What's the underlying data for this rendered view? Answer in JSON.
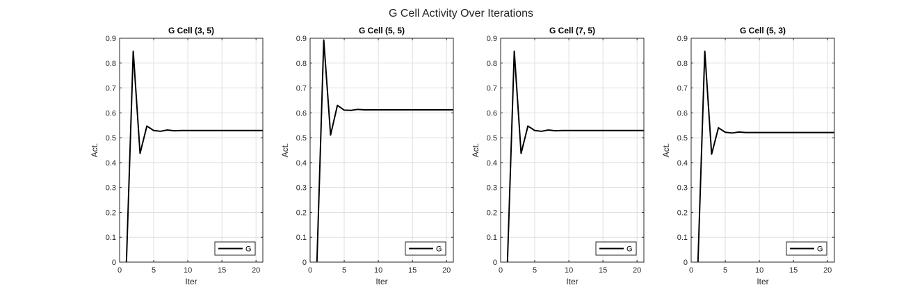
{
  "figure": {
    "title": "G Cell Activity Over Iterations"
  },
  "chart_data": [
    {
      "type": "line",
      "title": "G Cell (3, 5)",
      "xlabel": "Iter",
      "ylabel": "Act.",
      "xlim": [
        0,
        21
      ],
      "ylim": [
        0,
        0.9
      ],
      "xticks": [
        0,
        5,
        10,
        15,
        20
      ],
      "yticks": [
        0,
        0.1,
        0.2,
        0.3,
        0.4,
        0.5,
        0.6,
        0.7,
        0.8,
        0.9
      ],
      "grid": true,
      "legend_position": "bottom-right",
      "series": [
        {
          "name": "G",
          "color": "#000000",
          "x": [
            1,
            2,
            3,
            4,
            5,
            6,
            7,
            8,
            9,
            10,
            11,
            12,
            13,
            14,
            15,
            16,
            17,
            18,
            19,
            20,
            21
          ],
          "y": [
            0,
            0.848,
            0.437,
            0.547,
            0.529,
            0.526,
            0.531,
            0.528,
            0.529,
            0.529,
            0.529,
            0.529,
            0.529,
            0.529,
            0.529,
            0.529,
            0.529,
            0.529,
            0.529,
            0.529,
            0.529
          ]
        }
      ]
    },
    {
      "type": "line",
      "title": "G Cell (5, 5)",
      "xlabel": "Iter",
      "ylabel": "Act.",
      "xlim": [
        0,
        21
      ],
      "ylim": [
        0,
        0.9
      ],
      "xticks": [
        0,
        5,
        10,
        15,
        20
      ],
      "yticks": [
        0,
        0.1,
        0.2,
        0.3,
        0.4,
        0.5,
        0.6,
        0.7,
        0.8,
        0.9
      ],
      "grid": true,
      "legend_position": "bottom-right",
      "series": [
        {
          "name": "G",
          "color": "#000000",
          "x": [
            1,
            2,
            3,
            4,
            5,
            6,
            7,
            8,
            9,
            10,
            11,
            12,
            13,
            14,
            15,
            16,
            17,
            18,
            19,
            20,
            21
          ],
          "y": [
            0,
            0.893,
            0.511,
            0.63,
            0.611,
            0.61,
            0.614,
            0.612,
            0.612,
            0.612,
            0.612,
            0.612,
            0.612,
            0.612,
            0.612,
            0.612,
            0.612,
            0.612,
            0.612,
            0.612,
            0.612
          ]
        }
      ]
    },
    {
      "type": "line",
      "title": "G Cell (7, 5)",
      "xlabel": "Iter",
      "ylabel": "Act.",
      "xlim": [
        0,
        21
      ],
      "ylim": [
        0,
        0.9
      ],
      "xticks": [
        0,
        5,
        10,
        15,
        20
      ],
      "yticks": [
        0,
        0.1,
        0.2,
        0.3,
        0.4,
        0.5,
        0.6,
        0.7,
        0.8,
        0.9
      ],
      "grid": true,
      "legend_position": "bottom-right",
      "series": [
        {
          "name": "G",
          "color": "#000000",
          "x": [
            1,
            2,
            3,
            4,
            5,
            6,
            7,
            8,
            9,
            10,
            11,
            12,
            13,
            14,
            15,
            16,
            17,
            18,
            19,
            20,
            21
          ],
          "y": [
            0,
            0.848,
            0.437,
            0.547,
            0.529,
            0.526,
            0.531,
            0.528,
            0.529,
            0.529,
            0.529,
            0.529,
            0.529,
            0.529,
            0.529,
            0.529,
            0.529,
            0.529,
            0.529,
            0.529,
            0.529
          ]
        }
      ]
    },
    {
      "type": "line",
      "title": "G Cell (5, 3)",
      "xlabel": "Iter",
      "ylabel": "Act.",
      "xlim": [
        0,
        21
      ],
      "ylim": [
        0,
        0.9
      ],
      "xticks": [
        0,
        5,
        10,
        15,
        20
      ],
      "yticks": [
        0,
        0.1,
        0.2,
        0.3,
        0.4,
        0.5,
        0.6,
        0.7,
        0.8,
        0.9
      ],
      "grid": true,
      "legend_position": "bottom-right",
      "series": [
        {
          "name": "G",
          "color": "#000000",
          "x": [
            1,
            2,
            3,
            4,
            5,
            6,
            7,
            8,
            9,
            10,
            11,
            12,
            13,
            14,
            15,
            16,
            17,
            18,
            19,
            20,
            21
          ],
          "y": [
            0,
            0.848,
            0.434,
            0.54,
            0.522,
            0.519,
            0.523,
            0.521,
            0.521,
            0.521,
            0.521,
            0.521,
            0.521,
            0.521,
            0.521,
            0.521,
            0.521,
            0.521,
            0.521,
            0.521,
            0.521
          ]
        }
      ]
    }
  ],
  "colors": {
    "background": "#ffffff",
    "axes_box": "#262626",
    "grid": "#dfdfdf",
    "line": "#000000",
    "text": "#262626"
  }
}
